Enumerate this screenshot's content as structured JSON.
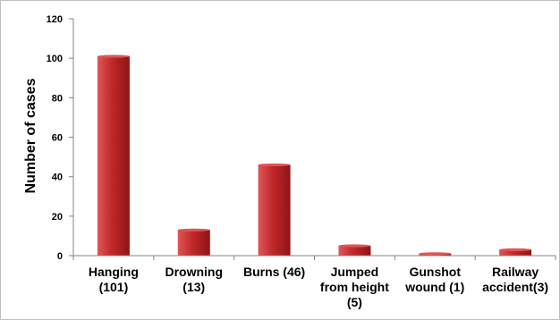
{
  "chart_data": {
    "type": "bar",
    "title": "",
    "xlabel": "",
    "ylabel": "Number of cases",
    "ylim": [
      0,
      120
    ],
    "yticks": [
      0,
      20,
      40,
      60,
      80,
      100,
      120
    ],
    "categories": [
      [
        "Hanging",
        "(101)"
      ],
      [
        "Drowning",
        "(13)"
      ],
      [
        "Burns (46)"
      ],
      [
        "Jumped",
        "from height",
        "(5)"
      ],
      [
        "Gunshot",
        "wound (1)"
      ],
      [
        "Railway",
        "accident(3)"
      ]
    ],
    "values": [
      101,
      13,
      46,
      5,
      1,
      3
    ],
    "grid": false,
    "legend": "none",
    "colors": {
      "bar_light": "#e05656",
      "bar_main": "#c0282b",
      "bar_dark": "#8e1416",
      "axis": "#868686"
    }
  }
}
